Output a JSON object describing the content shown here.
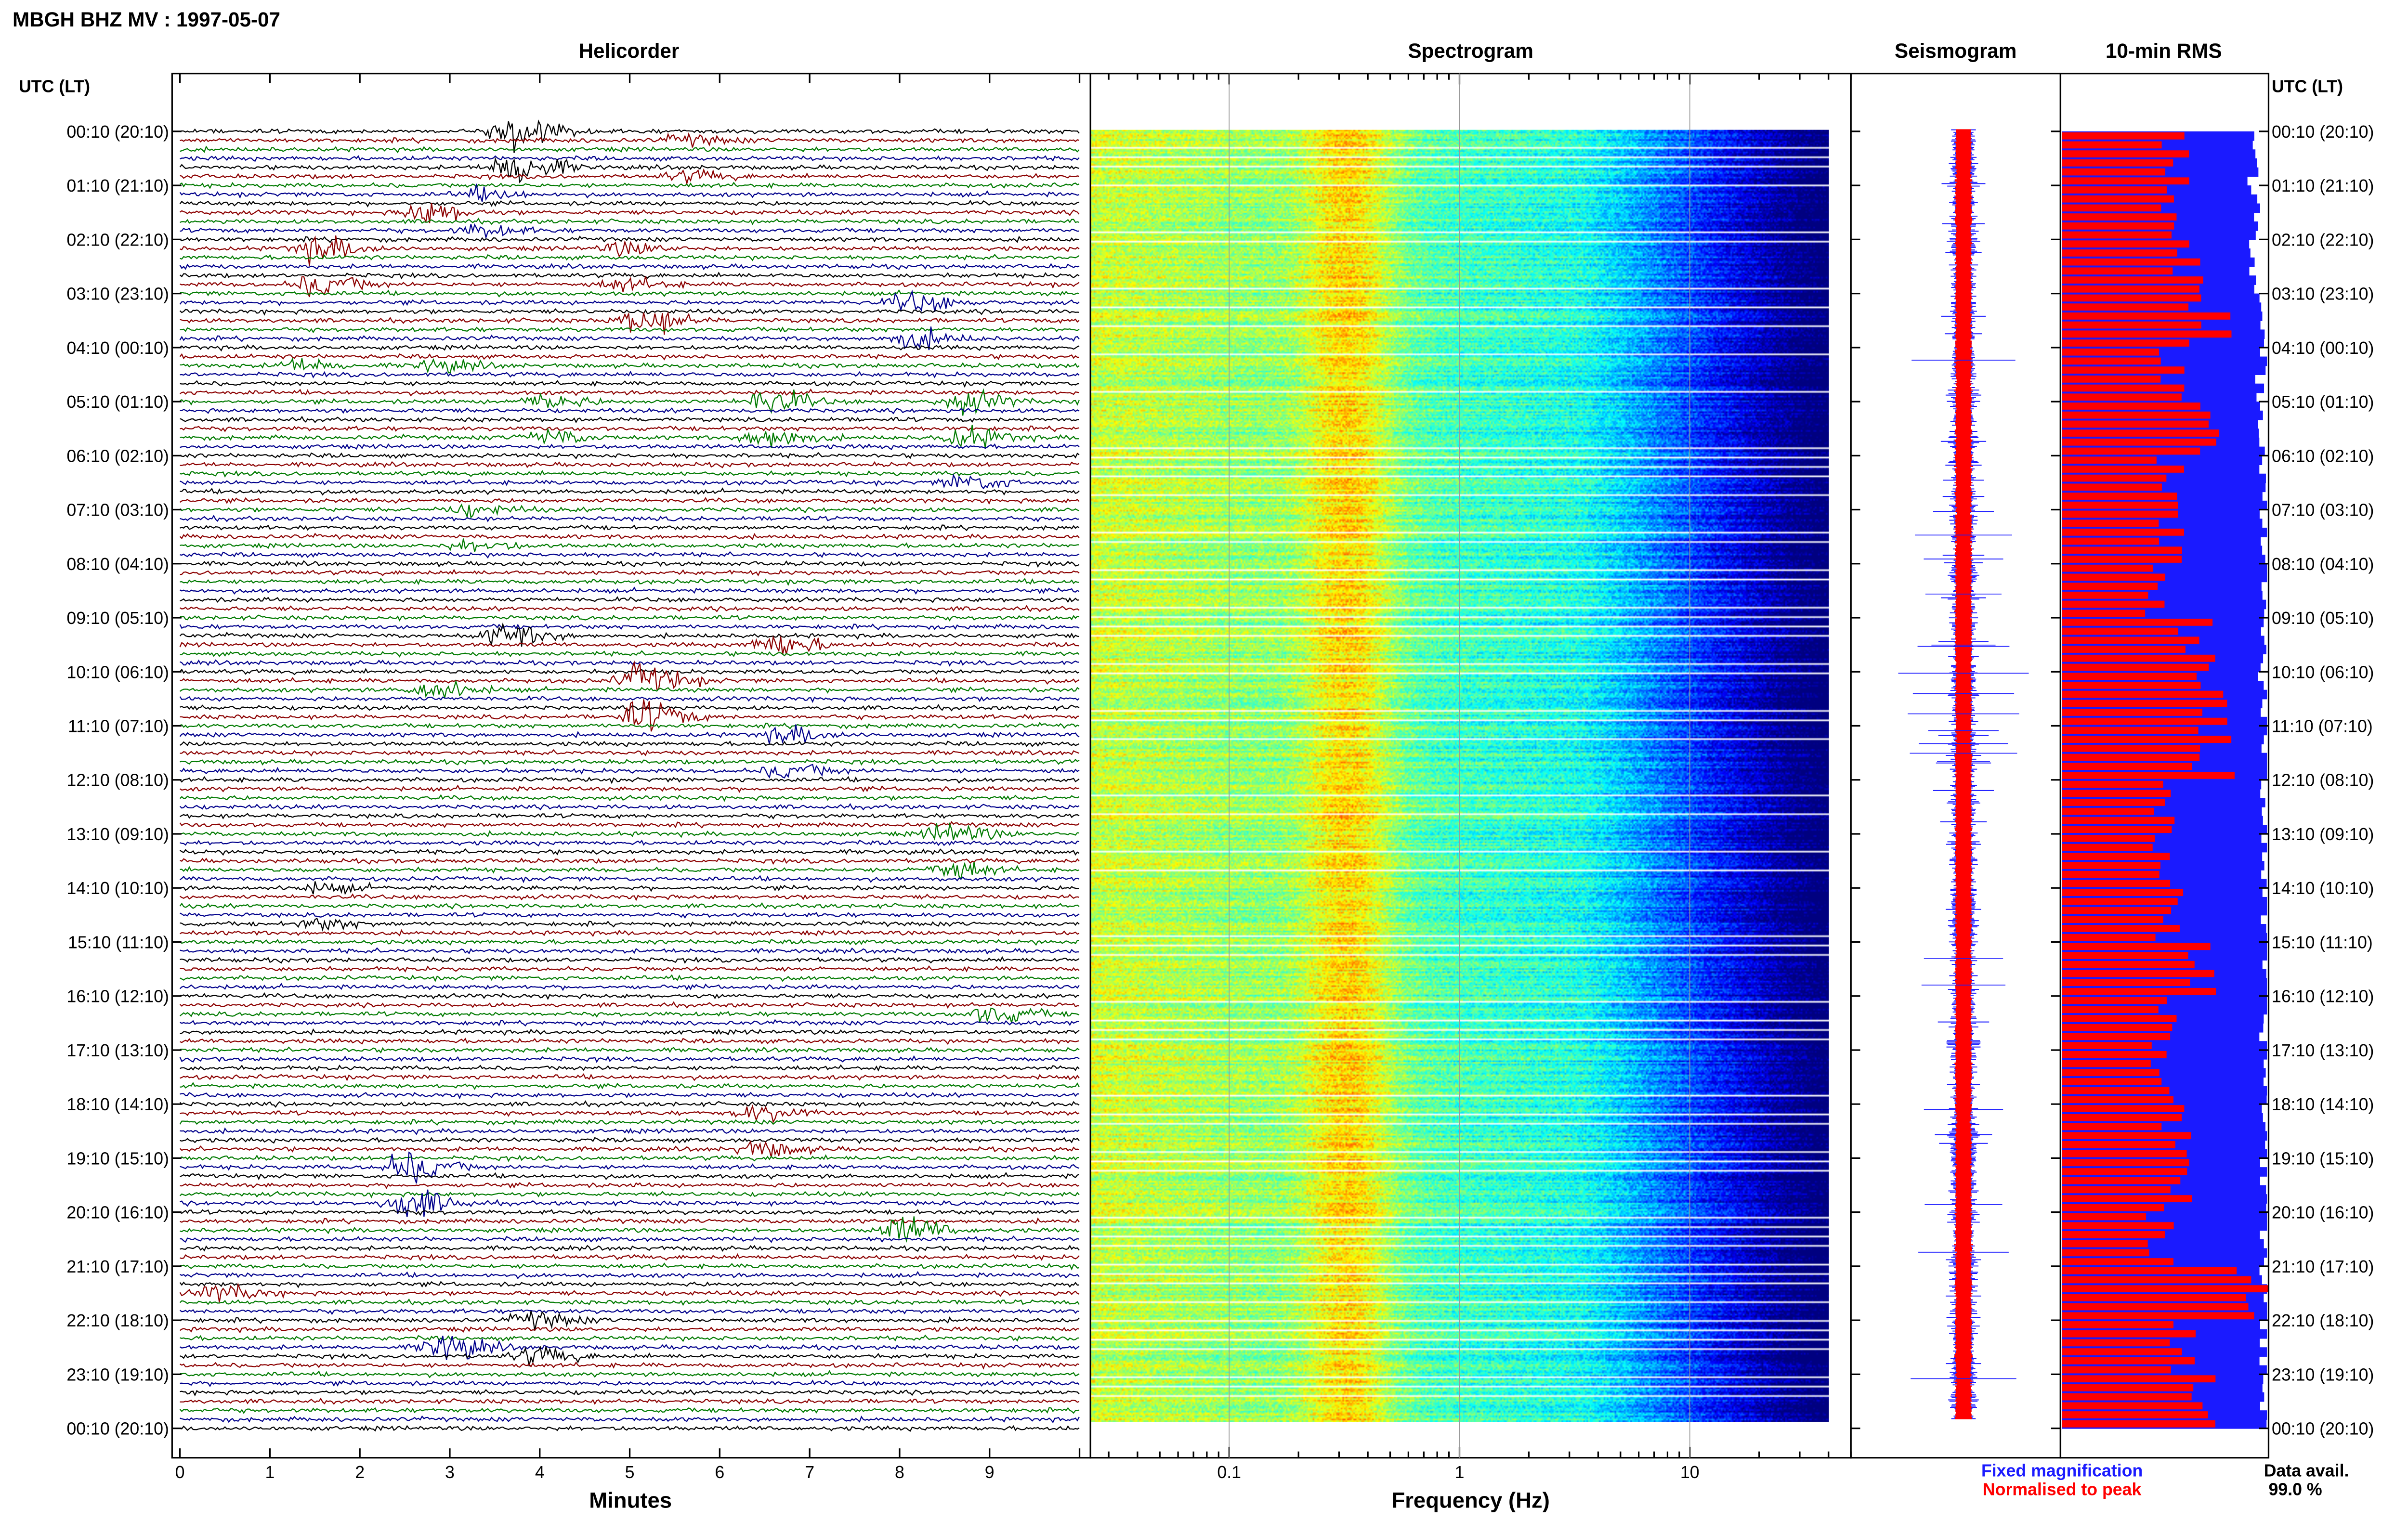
{
  "header": {
    "station_title": "MBGH BHZ MV : 1997-05-07",
    "utc_header_left": "UTC (LT)",
    "utc_header_right": "UTC (LT)"
  },
  "panels": {
    "helicorder": "Helicorder",
    "spectrogram": "Spectrogram",
    "seismogram": "Seismogram",
    "rms": "10-min RMS"
  },
  "time_labels": [
    "00:10 (20:10)",
    "01:10 (21:10)",
    "02:10 (22:10)",
    "03:10 (23:10)",
    "04:10 (00:10)",
    "05:10 (01:10)",
    "06:10 (02:10)",
    "07:10 (03:10)",
    "08:10 (04:10)",
    "09:10 (05:10)",
    "10:10 (06:10)",
    "11:10 (07:10)",
    "12:10 (08:10)",
    "13:10 (09:10)",
    "14:10 (10:10)",
    "15:10 (11:10)",
    "16:10 (12:10)",
    "17:10 (13:10)",
    "18:10 (14:10)",
    "19:10 (15:10)",
    "20:10 (16:10)",
    "21:10 (17:10)",
    "22:10 (18:10)",
    "23:10 (19:10)",
    "00:10 (20:10)"
  ],
  "legend": {
    "fixed": "Fixed magnification",
    "normalised": "Normalised to peak",
    "fixed_color": "#1a1aff",
    "normalised_color": "#ff0000"
  },
  "data_avail": {
    "label": "Data avail.",
    "value": "99.0 %"
  },
  "chart_data": [
    {
      "type": "line",
      "title": "Helicorder",
      "xlabel": "Minutes",
      "x_ticks": [
        0,
        1,
        2,
        3,
        4,
        5,
        6,
        7,
        8,
        9
      ],
      "xlim": [
        0,
        10
      ],
      "trace_colors": [
        "#000000",
        "#8b0000",
        "#007a00",
        "#00008b"
      ],
      "events": [
        {
          "row": 0,
          "minute": 3.7,
          "amplitude": 2.0,
          "color": "#000000"
        },
        {
          "row": 0,
          "minute": 5.6,
          "amplitude": 0.5,
          "color": "#8b0000"
        },
        {
          "row": 1,
          "minute": 2.7,
          "amplitude": 1.2,
          "color": "#8b0000"
        },
        {
          "row": 1,
          "minute": 3.3,
          "amplitude": 0.6,
          "color": "#00008b"
        },
        {
          "row": 2,
          "minute": 4.9,
          "amplitude": 0.6,
          "color": "#8b0000"
        },
        {
          "row": 2,
          "minute": 1.5,
          "amplitude": 1.2,
          "color": "#8b0000"
        },
        {
          "row": 3,
          "minute": 5.1,
          "amplitude": 1.4,
          "color": "#8b0000"
        },
        {
          "row": 3,
          "minute": 8.1,
          "amplitude": 1.0,
          "color": "#00008b"
        },
        {
          "row": 4,
          "minute": 1.3,
          "amplitude": 0.6,
          "color": "#007a00"
        },
        {
          "row": 4,
          "minute": 2.8,
          "amplitude": 0.6,
          "color": "#007a00"
        },
        {
          "row": 5,
          "minute": 6.5,
          "amplitude": 1.2,
          "color": "#007a00"
        },
        {
          "row": 5,
          "minute": 8.7,
          "amplitude": 1.0,
          "color": "#007a00"
        },
        {
          "row": 5,
          "minute": 4.0,
          "amplitude": 0.8,
          "color": "#007a00"
        },
        {
          "row": 6,
          "minute": 8.7,
          "amplitude": 0.8,
          "color": "#00008b"
        },
        {
          "row": 7,
          "minute": 3.2,
          "amplitude": 0.6,
          "color": "#007a00"
        },
        {
          "row": 9,
          "minute": 6.6,
          "amplitude": 1.2,
          "color": "#8b0000"
        },
        {
          "row": 9,
          "minute": 3.6,
          "amplitude": 1.2,
          "color": "#000000"
        },
        {
          "row": 10,
          "minute": 2.8,
          "amplitude": 1.0,
          "color": "#007a00"
        },
        {
          "row": 10,
          "minute": 5.1,
          "amplitude": 1.6,
          "color": "#8b0000"
        },
        {
          "row": 11,
          "minute": 6.7,
          "amplitude": 0.8,
          "color": "#00008b"
        },
        {
          "row": 13,
          "minute": 8.5,
          "amplitude": 1.0,
          "color": "#007a00"
        },
        {
          "row": 14,
          "minute": 1.5,
          "amplitude": 0.5,
          "color": "#000000"
        },
        {
          "row": 16,
          "minute": 9.0,
          "amplitude": 1.0,
          "color": "#007a00"
        },
        {
          "row": 18,
          "minute": 6.4,
          "amplitude": 0.8,
          "color": "#8b0000"
        },
        {
          "row": 19,
          "minute": 2.5,
          "amplitude": 1.6,
          "color": "#00008b"
        },
        {
          "row": 20,
          "minute": 8.0,
          "amplitude": 1.4,
          "color": "#007a00"
        },
        {
          "row": 21,
          "minute": 0.4,
          "amplitude": 0.8,
          "color": "#8b0000"
        },
        {
          "row": 22,
          "minute": 2.9,
          "amplitude": 1.4,
          "color": "#00008b"
        },
        {
          "row": 22,
          "minute": 3.9,
          "amplitude": 0.8,
          "color": "#000000"
        }
      ]
    },
    {
      "type": "heatmap",
      "title": "Spectrogram",
      "xlabel": "Frequency (Hz)",
      "x_scale": "log",
      "xlim": [
        0.025,
        50
      ],
      "x_ticks": [
        0.1,
        1,
        10
      ],
      "x_tick_labels": [
        "0.1",
        "1",
        "10"
      ],
      "data_extent_hz": 40,
      "peak_band_hz": [
        0.25,
        0.5
      ]
    },
    {
      "type": "line",
      "title": "Seismogram",
      "series": [
        {
          "name": "Fixed magnification",
          "color": "#1a1aff"
        },
        {
          "name": "Normalised to peak",
          "color": "#ff0000"
        }
      ]
    },
    {
      "type": "bar",
      "title": "10-min RMS",
      "categories": [
        "00:10 (20:10)",
        "01:10 (21:10)",
        "02:10 (22:10)",
        "03:10 (23:10)",
        "04:10 (00:10)",
        "05:10 (01:10)",
        "06:10 (02:10)",
        "07:10 (03:10)",
        "08:10 (04:10)",
        "09:10 (05:10)",
        "10:10 (06:10)",
        "11:10 (07:10)",
        "12:10 (08:10)",
        "13:10 (09:10)",
        "14:10 (10:10)",
        "15:10 (11:10)",
        "16:10 (12:10)",
        "17:10 (13:10)",
        "18:10 (14:10)",
        "19:10 (15:10)",
        "20:10 (16:10)",
        "21:10 (17:10)",
        "22:10 (18:10)",
        "23:10 (19:10)"
      ],
      "series": [
        {
          "name": "Fixed magnification",
          "color": "#1a1aff",
          "values": [
            0.92,
            0.94,
            0.93,
            0.95,
            0.96,
            0.97,
            0.98,
            0.98,
            0.98,
            0.97,
            0.97,
            0.98,
            0.98,
            0.98,
            0.98,
            0.98,
            0.98,
            0.98,
            0.98,
            0.98,
            0.98,
            0.98,
            0.98,
            0.98
          ]
        },
        {
          "name": "Normalised to peak",
          "color": "#ff0000",
          "values": [
            0.55,
            0.5,
            0.62,
            0.72,
            0.52,
            0.68,
            0.52,
            0.55,
            0.45,
            0.65,
            0.72,
            0.74,
            0.52,
            0.5,
            0.52,
            0.72,
            0.5,
            0.48,
            0.55,
            0.58,
            0.48,
            0.9,
            0.58,
            0.68
          ]
        }
      ]
    }
  ]
}
